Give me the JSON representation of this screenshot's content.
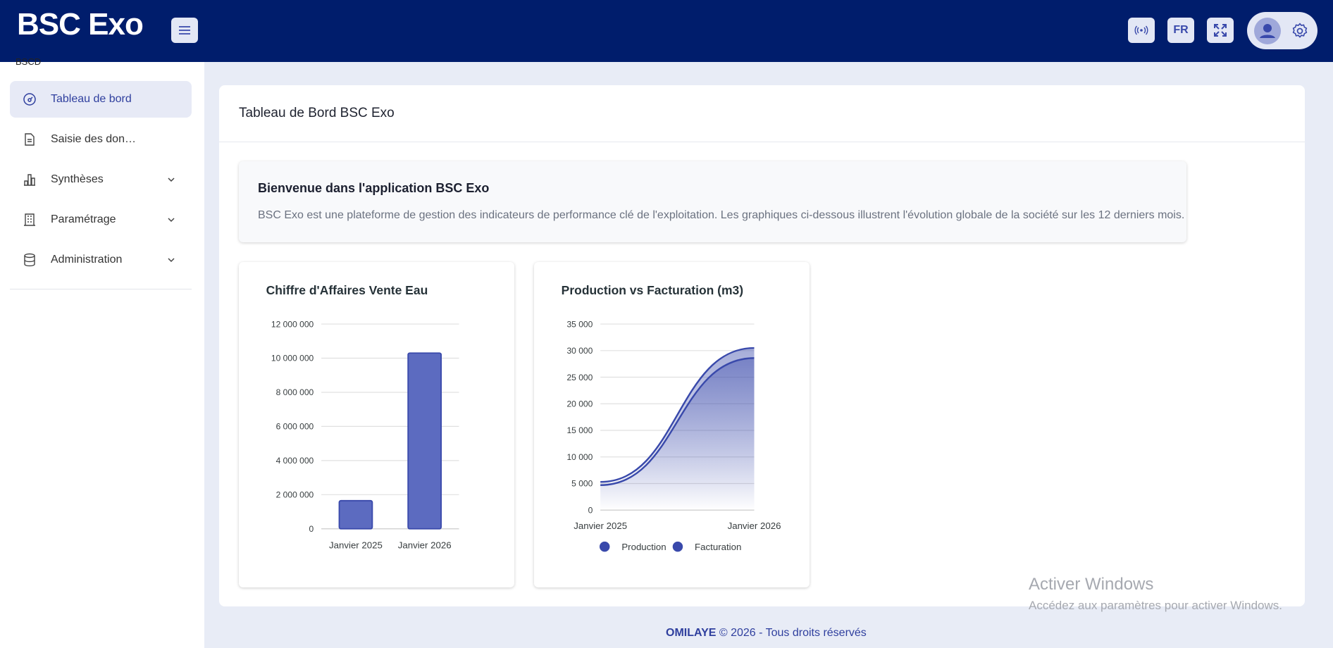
{
  "header": {
    "title": "BSC Exo",
    "language": "FR"
  },
  "sidebar": {
    "section": "BSCD",
    "items": [
      "Tableau de bord",
      "Saisie des don…",
      "Synthèses",
      "Paramétrage",
      "Administration"
    ]
  },
  "page": {
    "title": "Tableau de Bord BSC Exo"
  },
  "welcome": {
    "title": "Bienvenue dans l'application BSC Exo",
    "text": "BSC Exo est une plateforme de gestion des indicateurs de performance clé de l'exploitation. Les graphiques ci-dessous illustrent l'évolution globale de la société sur les 12 derniers mois."
  },
  "chart_data": [
    {
      "type": "bar",
      "title": "Chiffre d'Affaires Vente Eau",
      "categories": [
        "Janvier 2025",
        "Janvier 2026"
      ],
      "values": [
        1650000,
        10300000
      ],
      "color": "#5c6bc0",
      "ylim": [
        0,
        12000000
      ],
      "yticks": [
        0,
        {
          "value": 2000000,
          "label": "2 000 000"
        },
        {
          "value": 4000000,
          "label": "4 000 000"
        },
        {
          "value": 6000000,
          "label": "6 000 000"
        },
        {
          "value": 8000000,
          "label": "8 000 000"
        },
        {
          "value": 10000000,
          "label": "10 000 000"
        },
        {
          "value": 12000000,
          "label": "12 000 000"
        }
      ],
      "grid": true
    },
    {
      "type": "area",
      "title": "Production vs Facturation (m3)",
      "categories": [
        "Janvier 2025",
        "Janvier 2026"
      ],
      "series": [
        {
          "name": "Production",
          "color": "#3949ab",
          "values": [
            5300,
            30500
          ]
        },
        {
          "name": "Facturation",
          "color": "#3949ab",
          "values": [
            4700,
            28600
          ]
        }
      ],
      "ylim": [
        0,
        35000
      ],
      "yticks": [
        0,
        {
          "value": 5000,
          "label": "5 000"
        },
        {
          "value": 10000,
          "label": "10 000"
        },
        {
          "value": 15000,
          "label": "15 000"
        },
        {
          "value": 20000,
          "label": "20 000"
        },
        {
          "value": 25000,
          "label": "25 000"
        },
        {
          "value": 30000,
          "label": "30 000"
        },
        {
          "value": 35000,
          "label": "35 000"
        }
      ],
      "grid": true,
      "legend": "bottom"
    }
  ],
  "footer": {
    "brand": "OMILAYE",
    "text": "© 2026 - Tous droits réservés"
  },
  "watermark": {
    "title": "Activer Windows",
    "text": "Accédez aux paramètres pour activer Windows."
  }
}
